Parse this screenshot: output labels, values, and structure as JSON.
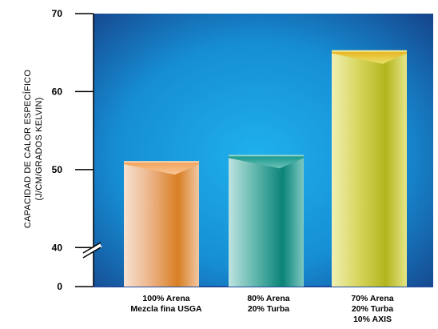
{
  "chart_data": {
    "type": "bar",
    "ylabel_line1": "CAPACIDAD DE CALOR ESPECÍFICO",
    "ylabel_line2": "(J/CM/GRADOS KELVIN)",
    "axis_break": true,
    "ylim": [
      35,
      70
    ],
    "y_ticks": [
      "70",
      "60",
      "50",
      "40",
      "0"
    ],
    "tick_values": [
      70,
      60,
      50,
      40,
      35
    ],
    "categories": [
      [
        "100% Arena",
        "Mezcla fina USGA"
      ],
      [
        "80% Arena",
        "20% Turba"
      ],
      [
        "70% Arena",
        "20% Turba",
        "10% AXIS"
      ]
    ],
    "values": [
      51.0,
      51.8,
      65.2
    ],
    "colors": {
      "background_center": "#1aa6e8",
      "background_edge": "#163f86",
      "bar1": "#e08c3a",
      "bar2": "#148b7c",
      "bar3": "#c9c23a"
    }
  }
}
